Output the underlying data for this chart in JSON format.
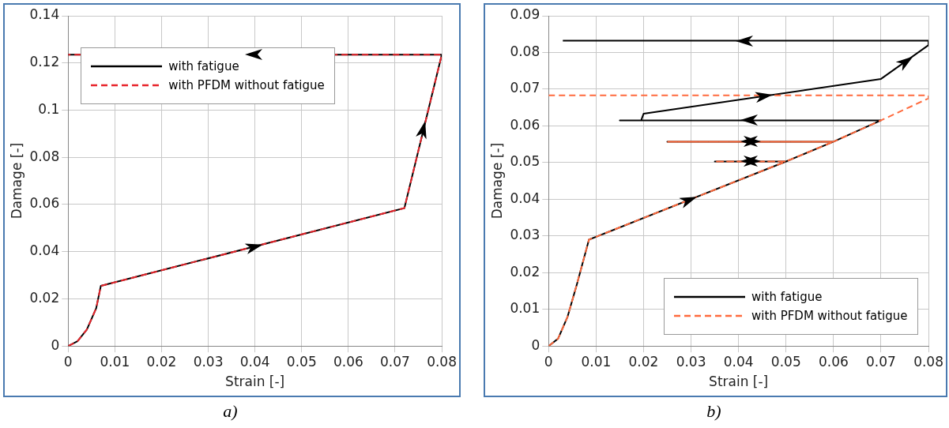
{
  "chart_data": [
    {
      "type": "line",
      "xlabel": "Strain [-]",
      "ylabel": "Damage [-]",
      "xlim": [
        0,
        0.08
      ],
      "xticks": [
        0,
        0.01,
        0.02,
        0.03,
        0.04,
        0.05,
        0.06,
        0.07,
        0.08
      ],
      "ylim": [
        0,
        0.14
      ],
      "yticks": [
        0,
        0.02,
        0.04,
        0.06,
        0.08,
        0.1,
        0.12,
        0.14
      ],
      "grid": true,
      "legend": "top left",
      "marker": "none",
      "annotations": [
        "a)"
      ],
      "series": [
        {
          "name": "with fatigue",
          "color": "#000000",
          "line_style": "solid",
          "x": [
            0,
            0.002,
            0.004,
            0.006,
            0.007,
            0.072,
            0.08,
            0
          ],
          "values": [
            0,
            0.002,
            0.007,
            0.016,
            0.0255,
            0.0585,
            0.1235,
            0.1235
          ]
        },
        {
          "name": "with PFDM without fatigue",
          "color": "#e8242b",
          "line_style": "dashed",
          "x": [
            0,
            0.002,
            0.004,
            0.006,
            0.007,
            0.072,
            0.08,
            0
          ],
          "values": [
            0,
            0.002,
            0.007,
            0.016,
            0.0255,
            0.0585,
            0.1235,
            0.1235
          ]
        }
      ]
    },
    {
      "type": "line",
      "xlabel": "Strain [-]",
      "ylabel": "Damage [-]",
      "xlim": [
        0,
        0.08
      ],
      "xticks": [
        0,
        0.01,
        0.02,
        0.03,
        0.04,
        0.05,
        0.06,
        0.07,
        0.08
      ],
      "ylim": [
        0,
        0.09
      ],
      "yticks": [
        0,
        0.01,
        0.02,
        0.03,
        0.04,
        0.05,
        0.06,
        0.07,
        0.08,
        0.09
      ],
      "grid": true,
      "legend": "bottom right",
      "marker": "none",
      "annotations": [
        "b)"
      ],
      "series": [
        {
          "name": "with fatigue",
          "color": "#000000",
          "line_style": "solid",
          "x": [
            0,
            0.002,
            0.004,
            0.006,
            0.0085,
            0.05,
            0.035,
            0.05,
            0.06,
            0.025,
            0.06,
            0.07,
            0.015,
            0.0195,
            0.02,
            0.07,
            0.08,
            0.08,
            0.003
          ],
          "values": [
            0,
            0.002,
            0.008,
            0.017,
            0.029,
            0.0503,
            0.0503,
            0.0503,
            0.0557,
            0.0557,
            0.0557,
            0.0615,
            0.0615,
            0.0615,
            0.0633,
            0.0728,
            0.082,
            0.0832,
            0.0832
          ]
        },
        {
          "name": "with PFDM without fatigue",
          "color": "#ff6a3d",
          "line_style": "dashed",
          "x": [
            0,
            0.002,
            0.004,
            0.006,
            0.0085,
            0.05,
            0.035,
            0.05,
            0.06,
            0.025,
            0.06,
            0.07,
            0.08,
            0.08,
            0
          ],
          "values": [
            0,
            0.002,
            0.008,
            0.017,
            0.029,
            0.0503,
            0.0503,
            0.0503,
            0.0557,
            0.0557,
            0.0557,
            0.0615,
            0.0675,
            0.0683,
            0.0683
          ]
        }
      ]
    }
  ]
}
